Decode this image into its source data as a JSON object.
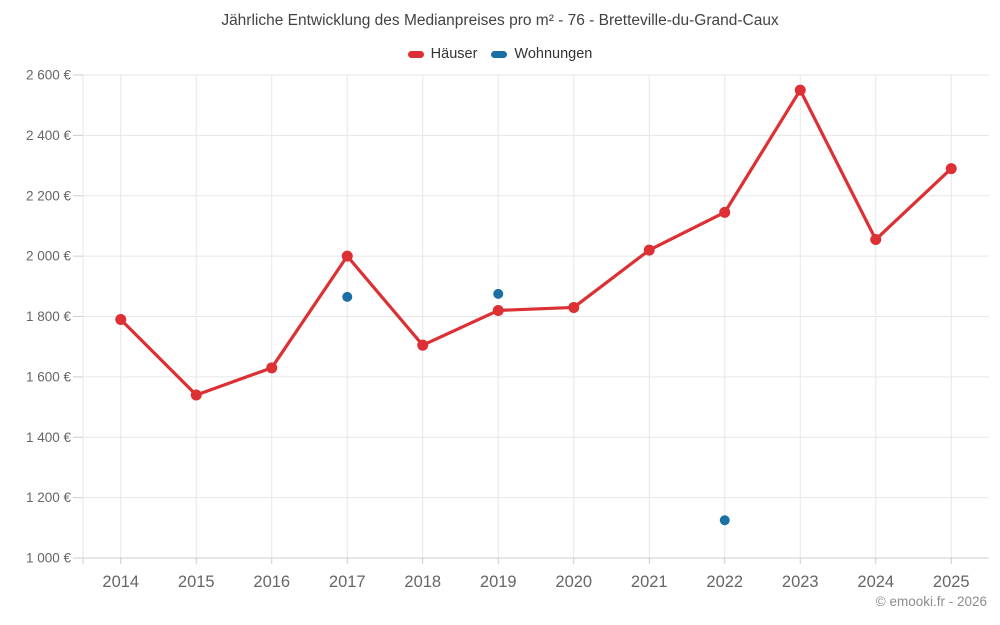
{
  "chart_data": {
    "type": "line",
    "title": "Jährliche Entwicklung des Medianpreises pro m² - 76 - Bretteville-du-Grand-Caux",
    "categories": [
      "2014",
      "2015",
      "2016",
      "2017",
      "2018",
      "2019",
      "2020",
      "2021",
      "2022",
      "2023",
      "2024",
      "2025"
    ],
    "series": [
      {
        "name": "Häuser",
        "color": "#dc3034",
        "values": [
          1790,
          1540,
          1630,
          2000,
          1705,
          1820,
          1830,
          2020,
          2145,
          2550,
          2055,
          2290
        ]
      },
      {
        "name": "Wohnungen",
        "color": "#1a6fa5",
        "values": [
          null,
          null,
          null,
          1865,
          null,
          1875,
          null,
          null,
          1125,
          null,
          null,
          null
        ]
      }
    ],
    "ylim": [
      1000,
      2600
    ],
    "ytick_step": 200,
    "ytick_labels": [
      "1 000 €",
      "1 200 €",
      "1 400 €",
      "1 600 €",
      "1 800 €",
      "2 000 €",
      "2 200 €",
      "2 400 €",
      "2 600 €"
    ],
    "xlabel": "",
    "ylabel": "",
    "grid": true,
    "legend_position": "top",
    "gridline_color": "#e7e7e7",
    "axis_line_color": "#cccccc",
    "tick_color": "#cccccc",
    "axis_label_color": "#666666",
    "copyright": "© emooki.fr - 2026"
  }
}
